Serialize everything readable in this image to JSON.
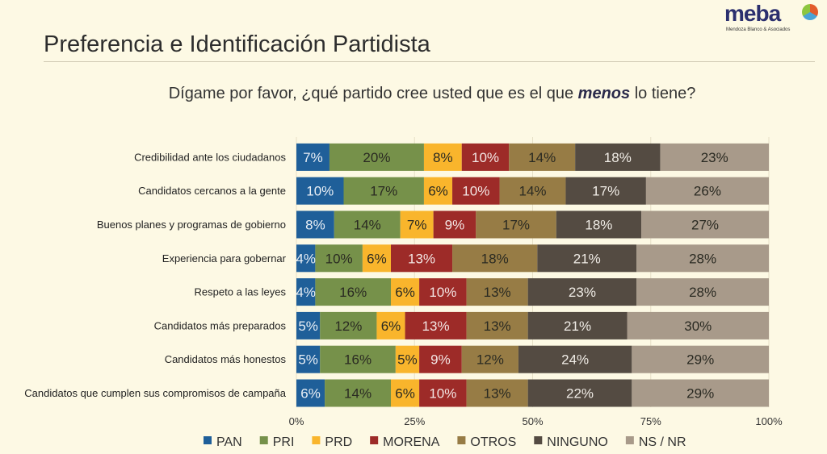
{
  "header": {
    "title": "Preferencia e Identificación Partidista",
    "logo": "meba",
    "logo_sub": "Mendoza Blanco & Asociados"
  },
  "chart_data": {
    "type": "bar",
    "orientation": "horizontal-stacked-100",
    "title": "Dígame por favor, ¿qué partido cree usted que es el que menos lo tiene?",
    "title_pre": "Dígame por favor, ¿qué partido cree usted que es el que ",
    "title_em": "menos",
    "title_post": " lo tiene?",
    "categories": [
      "Credibilidad ante los ciudadanos",
      "Candidatos cercanos a la gente",
      "Buenos planes y programas de gobierno",
      "Experiencia para gobernar",
      "Respeto a las leyes",
      "Candidatos más preparados",
      "Candidatos más honestos",
      "Candidatos que cumplen sus compromisos de campaña"
    ],
    "series": [
      {
        "name": "PAN",
        "color": "#1f5f99",
        "text": "#e8eef5",
        "values": [
          7,
          10,
          8,
          4,
          4,
          5,
          5,
          6
        ]
      },
      {
        "name": "PRI",
        "color": "#76914a",
        "text": "#2a2a22",
        "values": [
          20,
          17,
          14,
          10,
          16,
          12,
          16,
          14
        ]
      },
      {
        "name": "PRD",
        "color": "#f9b52c",
        "text": "#2a2a22",
        "values": [
          8,
          6,
          7,
          6,
          6,
          6,
          5,
          6
        ]
      },
      {
        "name": "MORENA",
        "color": "#9d2b28",
        "text": "#f3e6e4",
        "values": [
          10,
          10,
          9,
          13,
          10,
          13,
          9,
          10
        ]
      },
      {
        "name": "OTROS",
        "color": "#977c45",
        "text": "#2a2a22",
        "values": [
          14,
          14,
          17,
          18,
          13,
          13,
          12,
          13
        ]
      },
      {
        "name": "NINGUNO",
        "color": "#544b42",
        "text": "#f0ece6",
        "values": [
          18,
          17,
          18,
          21,
          23,
          21,
          24,
          22
        ]
      },
      {
        "name": "NS / NR",
        "color": "#a89a8a",
        "text": "#2a2a22",
        "values": [
          23,
          26,
          27,
          28,
          28,
          30,
          29,
          29
        ]
      }
    ],
    "xticks": [
      "0%",
      "25%",
      "50%",
      "75%",
      "100%"
    ],
    "xlim": [
      0,
      100
    ],
    "legend": "bottom",
    "grid": true
  }
}
